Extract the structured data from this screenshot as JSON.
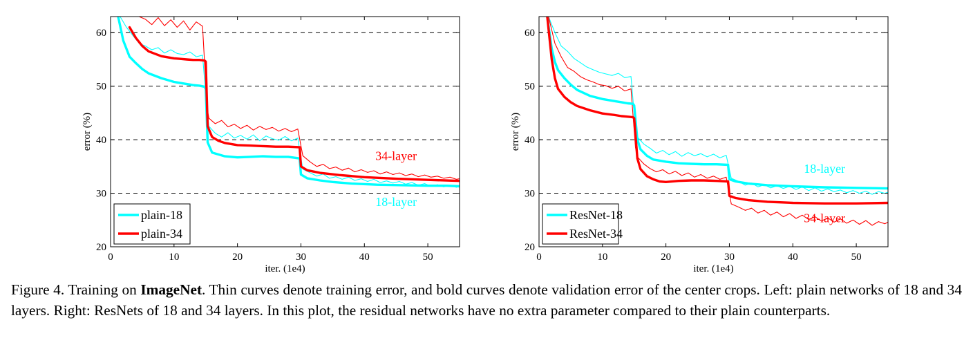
{
  "chart_data": [
    {
      "type": "line",
      "xlabel": "iter. (1e4)",
      "ylabel": "error (%)",
      "xlim": [
        0,
        55
      ],
      "ylim": [
        20,
        63
      ],
      "xticks": [
        0,
        10,
        20,
        30,
        40,
        50
      ],
      "yticks": [
        20,
        30,
        40,
        50,
        60
      ],
      "grid": "dashed horizontal lines at y = 30, 40, 50, 60",
      "legend_position": "bottom-left",
      "legend": [
        "plain-18",
        "plain-34"
      ],
      "annotations": [
        {
          "text": "34-layer",
          "color": "#ff0000",
          "x": 45,
          "y": 36.2
        },
        {
          "text": "18-layer",
          "color": "#00ffff",
          "x": 45,
          "y": 27.6
        }
      ],
      "series": [
        {
          "name": "plain-18",
          "kind": "validation",
          "color": "#00ffff",
          "x": [
            1.2,
            2,
            3,
            4,
            5,
            6,
            8,
            10,
            12,
            13,
            14,
            14.8,
            15,
            15.3,
            16,
            18,
            20,
            22,
            24,
            26,
            28,
            29.8,
            30,
            31,
            33,
            35,
            38,
            42,
            46,
            50,
            53,
            55
          ],
          "y": [
            63,
            58.5,
            55.5,
            54.3,
            53.2,
            52.4,
            51.5,
            50.8,
            50.4,
            50.2,
            50.1,
            49.9,
            49.5,
            39.5,
            37.6,
            36.9,
            36.7,
            36.8,
            36.9,
            36.8,
            36.8,
            36.5,
            33.5,
            32.8,
            32.4,
            32.1,
            31.8,
            31.6,
            31.5,
            31.4,
            31.4,
            31.3
          ]
        },
        {
          "name": "plain-34",
          "kind": "validation",
          "color": "#ff0000",
          "x": [
            3,
            4,
            5,
            6,
            8,
            10,
            12,
            13,
            14,
            14.8,
            15,
            15.3,
            16,
            17,
            18,
            20,
            22,
            24,
            26,
            28,
            29.8,
            30,
            31,
            33,
            36,
            40,
            45,
            50,
            55
          ],
          "y": [
            61,
            59,
            57.5,
            56.5,
            55.6,
            55.2,
            55,
            54.9,
            54.9,
            54.8,
            54.6,
            42.5,
            40.5,
            39.8,
            39.4,
            39,
            38.9,
            38.8,
            38.7,
            38.7,
            38.6,
            35,
            34.3,
            33.8,
            33.4,
            33.0,
            32.7,
            32.5,
            32.3
          ]
        },
        {
          "name": "",
          "kind": "training",
          "color": "#00ffff",
          "x": [
            1.5,
            2.5,
            3.5,
            4.5,
            5.5,
            6.5,
            7.5,
            8.5,
            9.5,
            10.5,
            11.5,
            12.5,
            13.5,
            14.5,
            15.2,
            15.5,
            16.5,
            17.5,
            18.5,
            19.5,
            20.5,
            21.5,
            22.5,
            23.5,
            24.5,
            25.5,
            26.5,
            27.5,
            28.5,
            29.5,
            30.3,
            31.5,
            32.5,
            33.5,
            34.5,
            35.5,
            36.5,
            37.5,
            38.5,
            39.5,
            40.5,
            41.5,
            42.5,
            43.5,
            44.5,
            45.5,
            46.5,
            47.5,
            48.5,
            49.5,
            50.5,
            51.5,
            52.5,
            53.5,
            54.5,
            55
          ],
          "y": [
            63,
            61,
            59.5,
            58,
            57.5,
            56.8,
            57.2,
            56.2,
            56.8,
            56.1,
            55.9,
            56.4,
            55.5,
            55.8,
            45.5,
            42.5,
            41.2,
            40.5,
            41.3,
            40.3,
            40.8,
            40.1,
            40.9,
            39.8,
            40.7,
            40.2,
            39.9,
            40.6,
            39.8,
            40.3,
            34.5,
            33.8,
            33.2,
            33.6,
            32.8,
            33.1,
            32.6,
            33.0,
            32.4,
            32.7,
            32.2,
            32.6,
            32.0,
            32.3,
            31.9,
            32.2,
            31.7,
            32.0,
            31.5,
            31.8,
            31.3,
            31.6,
            31.2,
            31.5,
            31.1,
            31.3
          ]
        },
        {
          "name": "",
          "kind": "training",
          "color": "#ff0000",
          "x": [
            4.5,
            5.5,
            6.5,
            7.5,
            8.5,
            9.5,
            10.5,
            11.5,
            12.5,
            13.5,
            14.5,
            15.2,
            15.5,
            16.5,
            17.5,
            18.5,
            19.5,
            20.5,
            21.5,
            22.5,
            23.5,
            24.5,
            25.5,
            26.5,
            27.5,
            28.5,
            29.5,
            30.3,
            31.5,
            32.5,
            33.5,
            34.5,
            35.5,
            36.5,
            37.5,
            38.5,
            39.5,
            40.5,
            41.5,
            42.5,
            43.5,
            44.5,
            45.5,
            46.5,
            47.5,
            48.5,
            49.5,
            50.5,
            51.5,
            52.5,
            53.5,
            54.5,
            55
          ],
          "y": [
            63,
            62.5,
            61.5,
            62.8,
            61.3,
            62.4,
            61,
            62.2,
            60.5,
            62,
            61.2,
            46,
            44,
            43,
            43.6,
            42.4,
            42.9,
            42.1,
            42.7,
            41.8,
            42.5,
            41.9,
            42.3,
            41.6,
            42.1,
            41.5,
            42,
            37,
            35.8,
            35,
            35.4,
            34.6,
            34.9,
            34.3,
            34.7,
            34.0,
            34.4,
            33.9,
            34.2,
            33.6,
            34.0,
            33.5,
            33.8,
            33.3,
            33.6,
            33.1,
            33.4,
            33.0,
            33.2,
            32.8,
            33.0,
            32.6,
            32.7
          ]
        }
      ]
    },
    {
      "type": "line",
      "xlabel": "iter. (1e4)",
      "ylabel": "error (%)",
      "xlim": [
        0,
        55
      ],
      "ylim": [
        20,
        63
      ],
      "xticks": [
        0,
        10,
        20,
        30,
        40,
        50
      ],
      "yticks": [
        20,
        30,
        40,
        50,
        60
      ],
      "grid": "dashed horizontal lines at y = 30, 40, 50, 60",
      "legend_position": "bottom-left",
      "legend": [
        "ResNet-18",
        "ResNet-34"
      ],
      "annotations": [
        {
          "text": "18-layer",
          "color": "#00ffff",
          "x": 45,
          "y": 33.8
        },
        {
          "text": "34-layer",
          "color": "#ff0000",
          "x": 45,
          "y": 24.6
        }
      ],
      "series": [
        {
          "name": "ResNet-18",
          "kind": "validation",
          "color": "#00ffff",
          "x": [
            1.3,
            2,
            2.5,
            3,
            4,
            5,
            6,
            8,
            10,
            12,
            13,
            14,
            14.8,
            15,
            15.5,
            16,
            17,
            18,
            20,
            22,
            24,
            26,
            28,
            29.8,
            30,
            31,
            33,
            36,
            40,
            45,
            50,
            55
          ],
          "y": [
            63,
            57,
            54.5,
            53,
            51.5,
            50.3,
            49.3,
            48.2,
            47.6,
            47.2,
            47,
            46.8,
            46.7,
            46.4,
            40,
            38.2,
            37,
            36.3,
            35.9,
            35.6,
            35.5,
            35.4,
            35.4,
            35.3,
            32.6,
            32.2,
            31.8,
            31.5,
            31.3,
            31.1,
            31.0,
            30.9
          ]
        },
        {
          "name": "ResNet-34",
          "kind": "validation",
          "color": "#ff0000",
          "x": [
            1.3,
            2,
            2.5,
            3,
            4,
            5,
            6,
            8,
            10,
            12,
            13,
            14,
            14.8,
            15,
            15.5,
            16,
            17,
            18,
            19,
            20,
            22,
            24,
            26,
            28,
            29.8,
            30,
            31,
            33,
            36,
            40,
            45,
            50,
            55
          ],
          "y": [
            63,
            55,
            51.5,
            49.5,
            48,
            47,
            46.3,
            45.5,
            44.9,
            44.6,
            44.4,
            44.3,
            44.2,
            44,
            36.5,
            34.5,
            33.2,
            32.6,
            32.2,
            32.1,
            32.3,
            32.4,
            32.4,
            32.3,
            32.2,
            29.5,
            29.1,
            28.7,
            28.4,
            28.2,
            28.1,
            28.1,
            28.2
          ]
        },
        {
          "name": "",
          "kind": "training",
          "color": "#00ffff",
          "x": [
            1.5,
            2.5,
            3.5,
            4.5,
            5.5,
            6.5,
            7.5,
            8.5,
            9.5,
            10.5,
            11.5,
            12.5,
            13.5,
            14.5,
            15.2,
            15.5,
            16.5,
            17.5,
            18.5,
            19.5,
            20.5,
            21.5,
            22.5,
            23.5,
            24.5,
            25.5,
            26.5,
            27.5,
            28.5,
            29.5,
            30.3,
            31.5,
            32.5,
            33.5,
            34.5,
            35.5,
            36.5,
            37.5,
            38.5,
            39.5,
            40.5,
            41.5,
            42.5,
            43.5,
            44.5,
            45.5,
            46.5,
            47.5,
            48.5,
            49.5,
            50.5,
            51.5,
            52.5,
            53.5,
            54.5,
            55
          ],
          "y": [
            63,
            60,
            57.5,
            56.5,
            55.2,
            54.4,
            53.6,
            53.1,
            52.6,
            52.3,
            52.0,
            52.4,
            51.6,
            51.8,
            42,
            40.5,
            39.2,
            38.4,
            37.5,
            38.0,
            37.2,
            37.8,
            36.9,
            37.6,
            37.0,
            37.4,
            36.8,
            37.3,
            36.6,
            37.1,
            32.8,
            32.2,
            31.5,
            31.9,
            31.2,
            31.6,
            31.0,
            31.4,
            30.9,
            31.3,
            30.7,
            31.2,
            30.5,
            31.0,
            30.4,
            30.8,
            30.3,
            30.6,
            30.1,
            30.5,
            30.0,
            30.4,
            29.8,
            30.3,
            30.0,
            30.2
          ]
        },
        {
          "name": "",
          "kind": "training",
          "color": "#ff0000",
          "x": [
            1.5,
            2.5,
            3.5,
            4.5,
            5.5,
            6.5,
            7.5,
            8.5,
            9.5,
            10.5,
            11.5,
            12.5,
            13.5,
            14.5,
            15.2,
            15.5,
            16.5,
            17.5,
            18.5,
            19.5,
            20.5,
            21.5,
            22.5,
            23.5,
            24.5,
            25.5,
            26.5,
            27.5,
            28.5,
            29.5,
            30.3,
            31.5,
            32.5,
            33.5,
            34.5,
            35.5,
            36.5,
            37.5,
            38.5,
            39.5,
            40.5,
            41.5,
            42.5,
            43.5,
            44.5,
            45.5,
            46.5,
            47.5,
            48.5,
            49.5,
            50.5,
            51.5,
            52.5,
            53.5,
            54.5,
            55
          ],
          "y": [
            63,
            58,
            55.5,
            53.5,
            52.8,
            51.8,
            51.2,
            50.8,
            50.3,
            50.1,
            49.6,
            50.0,
            49.1,
            49.5,
            38.5,
            36.8,
            35.5,
            34.6,
            34.0,
            34.4,
            33.6,
            34.1,
            33.3,
            33.8,
            33.0,
            33.5,
            32.8,
            33.2,
            32.6,
            33.0,
            28.0,
            27.4,
            26.8,
            27.2,
            26.3,
            26.8,
            25.9,
            26.5,
            25.6,
            26.2,
            25.3,
            25.9,
            25.1,
            25.6,
            24.8,
            25.4,
            24.6,
            25.2,
            24.4,
            25.0,
            24.2,
            24.9,
            24.0,
            24.7,
            24.3,
            24.6
          ]
        }
      ]
    }
  ],
  "caption": {
    "prefix": "Figure 4. Training on ",
    "bold": "ImageNet",
    "rest": ". Thin curves denote training error, and bold curves denote validation error of the center crops. Left: plain networks of 18 and 34 layers. Right: ResNets of 18 and 34 layers. In this plot, the residual networks have no extra parameter compared to their plain counterparts."
  }
}
